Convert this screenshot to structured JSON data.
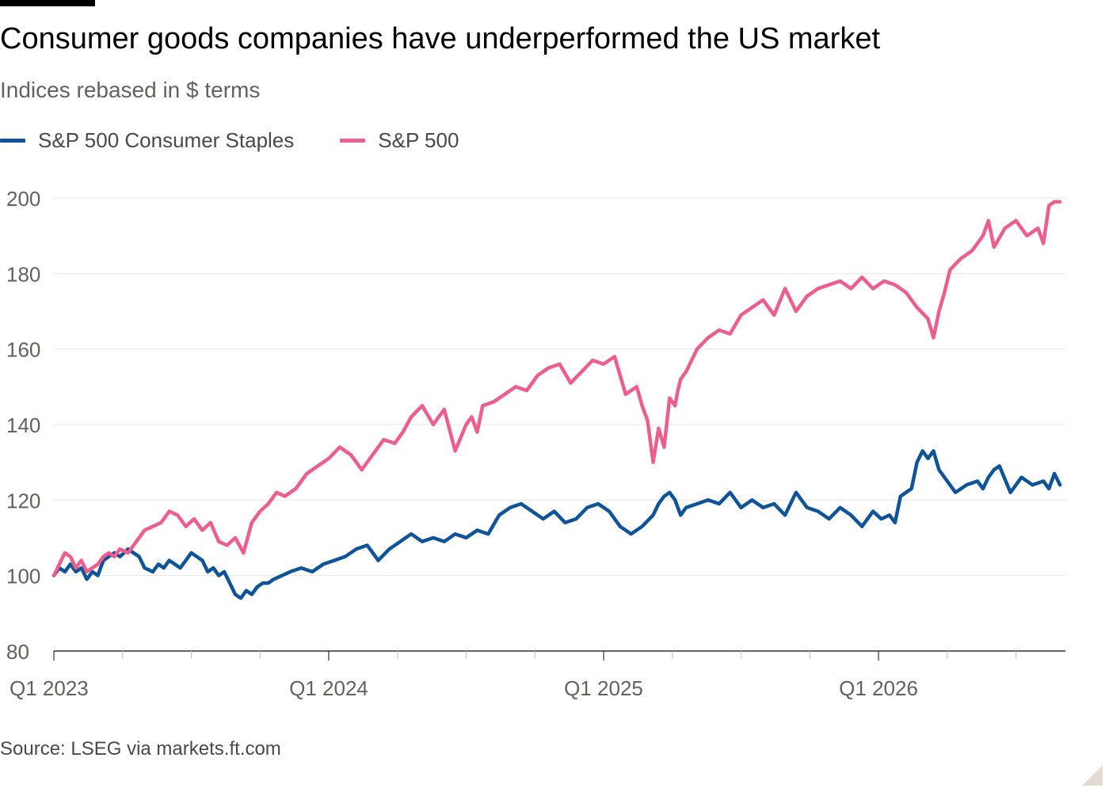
{
  "header": {
    "title": "Consumer goods companies have underperformed the US market",
    "subtitle": "Indices rebased in $ terms"
  },
  "footer": {
    "source": "Source: LSEG via markets.ft.com"
  },
  "colors": {
    "staples": "#0f5499",
    "sp500": "#eb5e8d",
    "grid": "#e9e6e3",
    "axis": "#33302e",
    "tick_text": "#66605c"
  },
  "chart_data": {
    "type": "line",
    "x_unit": "quarter",
    "x_range": [
      2023.0,
      2026.68
    ],
    "ylim": [
      80,
      200
    ],
    "yticks": [
      80,
      100,
      120,
      140,
      160,
      180,
      200
    ],
    "xticks": [
      {
        "x": 2023.0,
        "label": "Q1 2023"
      },
      {
        "x": 2023.25,
        "label": ""
      },
      {
        "x": 2023.5,
        "label": ""
      },
      {
        "x": 2023.75,
        "label": ""
      },
      {
        "x": 2024.0,
        "label": "Q1 2024"
      },
      {
        "x": 2024.25,
        "label": ""
      },
      {
        "x": 2024.5,
        "label": ""
      },
      {
        "x": 2024.75,
        "label": ""
      },
      {
        "x": 2025.0,
        "label": "Q1 2025"
      },
      {
        "x": 2025.25,
        "label": ""
      },
      {
        "x": 2025.5,
        "label": ""
      },
      {
        "x": 2025.75,
        "label": ""
      },
      {
        "x": 2026.0,
        "label": "Q1 2026"
      },
      {
        "x": 2026.25,
        "label": ""
      },
      {
        "x": 2026.5,
        "label": ""
      }
    ],
    "grid": true,
    "legend_position": "top-left",
    "series": [
      {
        "name": "S&P 500 Consumer Staples",
        "color": "#0f5499",
        "x": [
          2023.0,
          2023.02,
          2023.04,
          2023.06,
          2023.08,
          2023.1,
          2023.12,
          2023.14,
          2023.16,
          2023.18,
          2023.2,
          2023.22,
          2023.24,
          2023.27,
          2023.29,
          2023.31,
          2023.33,
          2023.36,
          2023.38,
          2023.4,
          2023.42,
          2023.44,
          2023.46,
          2023.48,
          2023.5,
          2023.52,
          2023.54,
          2023.56,
          2023.58,
          2023.6,
          2023.62,
          2023.64,
          2023.66,
          2023.68,
          2023.7,
          2023.72,
          2023.74,
          2023.76,
          2023.78,
          2023.8,
          2023.83,
          2023.86,
          2023.9,
          2023.94,
          2023.98,
          2024.02,
          2024.06,
          2024.1,
          2024.14,
          2024.18,
          2024.22,
          2024.26,
          2024.3,
          2024.34,
          2024.38,
          2024.42,
          2024.46,
          2024.5,
          2024.54,
          2024.58,
          2024.62,
          2024.66,
          2024.7,
          2024.74,
          2024.78,
          2024.82,
          2024.86,
          2024.9,
          2024.94,
          2024.98,
          2025.02,
          2025.06,
          2025.1,
          2025.14,
          2025.18,
          2025.2,
          2025.22,
          2025.24,
          2025.26,
          2025.28,
          2025.3,
          2025.34,
          2025.38,
          2025.42,
          2025.46,
          2025.5,
          2025.54,
          2025.58,
          2025.62,
          2025.66,
          2025.7,
          2025.74,
          2025.78,
          2025.82,
          2025.86,
          2025.9,
          2025.94,
          2025.98,
          2026.01,
          2026.04,
          2026.06,
          2026.08,
          2026.1,
          2026.12,
          2026.14,
          2026.16,
          2026.18,
          2026.2,
          2026.22,
          2026.24,
          2026.28,
          2026.32,
          2026.36,
          2026.38,
          2026.4,
          2026.42,
          2026.44,
          2026.48,
          2026.52,
          2026.56,
          2026.6,
          2026.62,
          2026.64,
          2026.66
        ],
        "values": [
          100,
          102,
          101,
          103,
          101,
          102,
          99,
          101,
          100,
          104,
          105,
          106,
          105,
          107,
          106,
          105,
          102,
          101,
          103,
          102,
          104,
          103,
          102,
          104,
          106,
          105,
          104,
          101,
          102,
          100,
          101,
          98,
          95,
          94,
          96,
          95,
          97,
          98,
          98,
          99,
          100,
          101,
          102,
          101,
          103,
          104,
          105,
          107,
          108,
          104,
          107,
          109,
          111,
          109,
          110,
          109,
          111,
          110,
          112,
          111,
          116,
          118,
          119,
          117,
          115,
          117,
          114,
          115,
          118,
          119,
          117,
          113,
          111,
          113,
          116,
          119,
          121,
          122,
          120,
          116,
          118,
          119,
          120,
          119,
          122,
          118,
          120,
          118,
          119,
          116,
          122,
          118,
          117,
          115,
          118,
          116,
          113,
          117,
          115,
          116,
          114,
          121,
          122,
          123,
          130,
          133,
          131,
          133,
          128,
          126,
          122,
          124,
          125,
          123,
          126,
          128,
          129,
          122,
          126,
          124,
          125,
          123,
          127,
          124
        ]
      },
      {
        "name": "S&P 500",
        "color": "#eb5e8d",
        "x": [
          2023.0,
          2023.02,
          2023.04,
          2023.06,
          2023.08,
          2023.1,
          2023.12,
          2023.14,
          2023.16,
          2023.18,
          2023.2,
          2023.22,
          2023.24,
          2023.27,
          2023.3,
          2023.33,
          2023.36,
          2023.39,
          2023.42,
          2023.45,
          2023.48,
          2023.51,
          2023.54,
          2023.57,
          2023.6,
          2023.63,
          2023.66,
          2023.69,
          2023.72,
          2023.75,
          2023.78,
          2023.81,
          2023.84,
          2023.88,
          2023.92,
          2023.96,
          2024.0,
          2024.04,
          2024.08,
          2024.12,
          2024.16,
          2024.2,
          2024.24,
          2024.27,
          2024.3,
          2024.34,
          2024.38,
          2024.42,
          2024.46,
          2024.5,
          2024.52,
          2024.54,
          2024.56,
          2024.6,
          2024.64,
          2024.68,
          2024.72,
          2024.76,
          2024.8,
          2024.84,
          2024.88,
          2024.92,
          2024.96,
          2025.0,
          2025.04,
          2025.08,
          2025.12,
          2025.14,
          2025.16,
          2025.18,
          2025.2,
          2025.22,
          2025.24,
          2025.26,
          2025.27,
          2025.28,
          2025.3,
          2025.32,
          2025.34,
          2025.38,
          2025.42,
          2025.46,
          2025.5,
          2025.54,
          2025.58,
          2025.62,
          2025.66,
          2025.7,
          2025.74,
          2025.78,
          2025.82,
          2025.86,
          2025.9,
          2025.94,
          2025.98,
          2026.02,
          2026.06,
          2026.1,
          2026.14,
          2026.18,
          2026.2,
          2026.22,
          2026.24,
          2026.26,
          2026.3,
          2026.34,
          2026.38,
          2026.4,
          2026.42,
          2026.46,
          2026.5,
          2026.54,
          2026.58,
          2026.6,
          2026.62,
          2026.64,
          2026.66
        ],
        "values": [
          100,
          103,
          106,
          105,
          102,
          104,
          101,
          102,
          103,
          105,
          106,
          105,
          107,
          106,
          109,
          112,
          113,
          114,
          117,
          116,
          113,
          115,
          112,
          114,
          109,
          108,
          110,
          106,
          114,
          117,
          119,
          122,
          121,
          123,
          127,
          129,
          131,
          134,
          132,
          128,
          132,
          136,
          135,
          138,
          142,
          145,
          140,
          144,
          133,
          140,
          142,
          138,
          145,
          146,
          148,
          150,
          149,
          153,
          155,
          156,
          151,
          154,
          157,
          156,
          158,
          148,
          150,
          145,
          141,
          130,
          139,
          134,
          147,
          145,
          149,
          152,
          154,
          157,
          160,
          163,
          165,
          164,
          169,
          171,
          173,
          169,
          176,
          170,
          174,
          176,
          177,
          178,
          176,
          179,
          176,
          178,
          177,
          175,
          171,
          168,
          163,
          170,
          175,
          181,
          184,
          186,
          190,
          194,
          187,
          192,
          194,
          190,
          192,
          188,
          198,
          199,
          199
        ]
      }
    ]
  }
}
